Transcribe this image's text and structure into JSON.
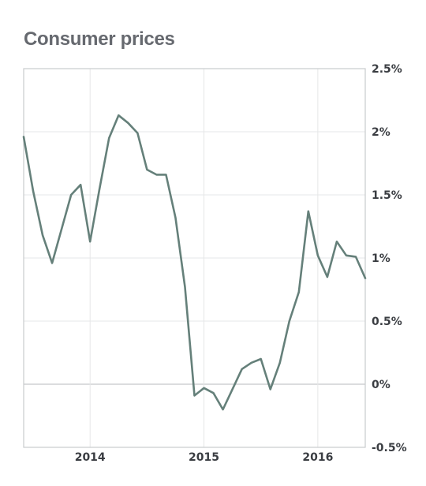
{
  "chart_data": {
    "type": "line",
    "title": "Consumer prices",
    "xlabel": "",
    "ylabel": "",
    "x_ticks": [
      "2014",
      "2015",
      "2016"
    ],
    "y_ticks": [
      "2.5%",
      "2%",
      "1.5%",
      "1%",
      "0.5%",
      "0%",
      "-0.5%"
    ],
    "y_tick_values": [
      2.5,
      2.0,
      1.5,
      1.0,
      0.5,
      0.0,
      -0.5
    ],
    "ylim": [
      -0.5,
      2.5
    ],
    "xlim": [
      "2013-06",
      "2016-06"
    ],
    "grid": true,
    "y_axis_position": "right",
    "line_color": "#65807a",
    "series": [
      {
        "x": [
          "2013-06",
          "2013-07",
          "2013-08",
          "2013-09",
          "2013-10",
          "2013-11",
          "2013-12",
          "2014-01",
          "2014-02",
          "2014-03",
          "2014-04",
          "2014-05",
          "2014-06",
          "2014-07",
          "2014-08",
          "2014-09",
          "2014-10",
          "2014-11",
          "2014-12",
          "2015-01",
          "2015-02",
          "2015-03",
          "2015-04",
          "2015-05",
          "2015-06",
          "2015-07",
          "2015-08",
          "2015-09",
          "2015-10",
          "2015-11",
          "2015-12",
          "2016-01",
          "2016-02",
          "2016-03",
          "2016-04",
          "2016-05",
          "2016-06"
        ],
        "values": [
          1.96,
          1.53,
          1.18,
          0.96,
          1.23,
          1.5,
          1.58,
          1.13,
          1.55,
          1.95,
          2.13,
          2.07,
          1.99,
          1.7,
          1.66,
          1.66,
          1.32,
          0.77,
          -0.09,
          -0.03,
          -0.07,
          -0.2,
          -0.04,
          0.12,
          0.17,
          0.2,
          -0.04,
          0.17,
          0.5,
          0.73,
          1.37,
          1.02,
          0.85,
          1.13,
          1.02,
          1.01,
          0.84
        ]
      }
    ]
  }
}
